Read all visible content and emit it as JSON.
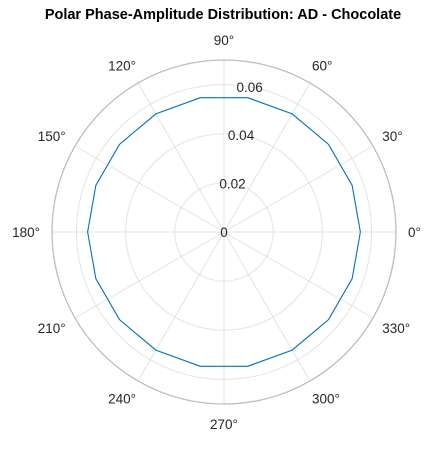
{
  "chart_data": {
    "type": "line",
    "subtype": "polar",
    "title": "Polar Phase-Amplitude Distribution: AD - Chocolate",
    "theta_unit": "degrees",
    "theta_ticks": [
      0,
      30,
      60,
      90,
      120,
      150,
      180,
      210,
      240,
      270,
      300,
      330
    ],
    "theta_tick_labels": [
      "0°",
      "30°",
      "60°",
      "90°",
      "120°",
      "150°",
      "180°",
      "210°",
      "240°",
      "270°",
      "300°",
      "330°"
    ],
    "r_ticks": [
      0,
      0.02,
      0.04,
      0.06
    ],
    "r_tick_labels": [
      "0",
      "0.02",
      "0.04",
      "0.06"
    ],
    "rlim": [
      0,
      0.07
    ],
    "grid": true,
    "series": [
      {
        "color": "#0072BD",
        "theta": [
          0,
          20,
          40,
          60,
          80,
          100,
          120,
          140,
          160,
          180,
          200,
          220,
          240,
          260,
          280,
          300,
          320,
          340,
          360
        ],
        "r": [
          0.0555,
          0.0555,
          0.0555,
          0.0555,
          0.0555,
          0.0555,
          0.0555,
          0.0555,
          0.0555,
          0.0555,
          0.0555,
          0.0555,
          0.0555,
          0.0555,
          0.0555,
          0.0555,
          0.0555,
          0.0555,
          0.0555
        ]
      }
    ]
  }
}
